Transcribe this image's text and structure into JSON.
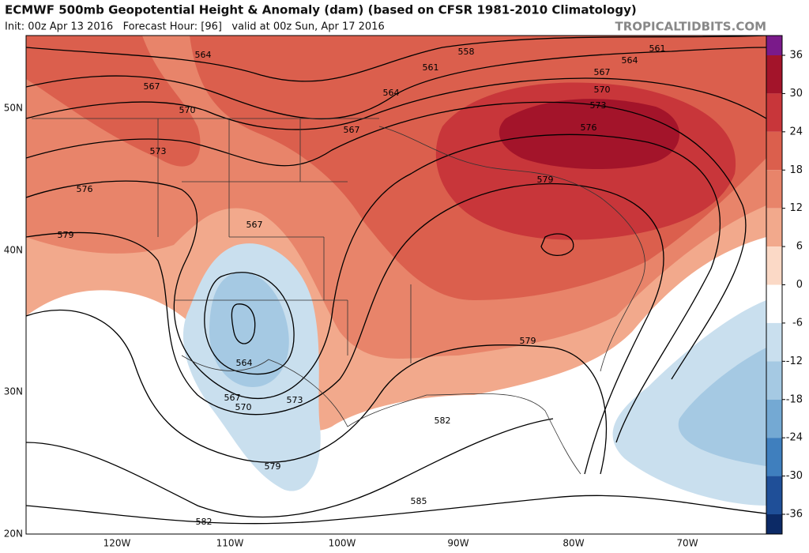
{
  "header": {
    "title": "ECMWF 500mb Geopotential Height & Anomaly (dam) (based on CFSR 1981-2010 Climatology)",
    "subtitle": "Init: 00z Apr 13 2016   Forecast Hour: [96]   valid at 00z Sun, Apr 17 2016",
    "credit": "TROPICALTIDBITS.COM"
  },
  "map": {
    "lat_labels": [
      "50N",
      "40N",
      "30N",
      "20N"
    ],
    "lon_labels": [
      "120W",
      "110W",
      "100W",
      "90W",
      "80W",
      "70W"
    ],
    "contour_labels": [
      564,
      558,
      561,
      561,
      564,
      567,
      570,
      573,
      576,
      579,
      564,
      567,
      567,
      570,
      573,
      576,
      579,
      567,
      564,
      567,
      570,
      573,
      579,
      582,
      579,
      585,
      582
    ]
  },
  "colorbar": {
    "ticks": [
      36,
      30,
      24,
      18,
      12,
      6,
      0,
      -6,
      -12,
      -18,
      -24,
      -30,
      -36
    ],
    "colors": [
      "#7a1a8a",
      "#a3142a",
      "#c8363a",
      "#db5f4d",
      "#e8846a",
      "#f2a98c",
      "#fbd9c6",
      "#ffffff",
      "#c9dfee",
      "#a5c9e3",
      "#74a9d3",
      "#3f7fbe",
      "#1f4f98",
      "#0c2a66"
    ]
  }
}
